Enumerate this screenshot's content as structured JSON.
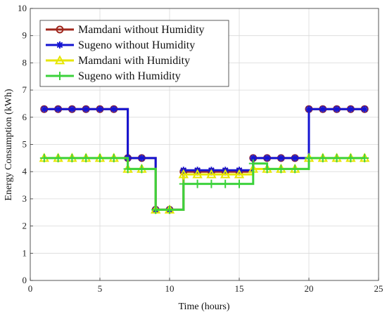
{
  "chart_data": {
    "type": "line",
    "xlabel": "Time (hours)",
    "ylabel": "Energy Consumption (kWh)",
    "xlim": [
      0,
      25
    ],
    "ylim": [
      0,
      10
    ],
    "xticks": [
      0,
      5,
      10,
      15,
      20,
      25
    ],
    "yticks": [
      0,
      1,
      2,
      3,
      4,
      5,
      6,
      7,
      8,
      9,
      10
    ],
    "grid": true,
    "legend_position": "top-left",
    "x": [
      1,
      2,
      3,
      4,
      5,
      6,
      7,
      8,
      9,
      10,
      11,
      12,
      13,
      14,
      15,
      16,
      17,
      18,
      19,
      20,
      21,
      22,
      23,
      24
    ],
    "series": [
      {
        "name": "Mamdani without Humidity",
        "color": "#a0281e",
        "marker": "circle",
        "values": [
          6.3,
          6.3,
          6.3,
          6.3,
          6.3,
          6.3,
          4.5,
          4.5,
          2.6,
          2.6,
          4.0,
          4.0,
          4.0,
          4.0,
          4.0,
          4.5,
          4.5,
          4.5,
          4.5,
          6.3,
          6.3,
          6.3,
          6.3,
          6.3
        ]
      },
      {
        "name": "Sugeno without Humidity",
        "color": "#1414d2",
        "marker": "star",
        "values": [
          6.3,
          6.3,
          6.3,
          6.3,
          6.3,
          6.3,
          4.5,
          4.5,
          2.6,
          2.6,
          4.05,
          4.05,
          4.05,
          4.05,
          4.05,
          4.5,
          4.5,
          4.5,
          4.5,
          6.3,
          6.3,
          6.3,
          6.3,
          6.3
        ]
      },
      {
        "name": "Mamdani with Humidity",
        "color": "#e6e600",
        "marker": "triangle",
        "values": [
          4.5,
          4.5,
          4.5,
          4.5,
          4.5,
          4.5,
          4.1,
          4.1,
          2.6,
          2.6,
          3.9,
          3.9,
          3.9,
          3.9,
          3.9,
          4.1,
          4.1,
          4.1,
          4.1,
          4.5,
          4.5,
          4.5,
          4.5,
          4.5
        ]
      },
      {
        "name": "Sugeno with Humidity",
        "color": "#3cd23c",
        "marker": "plus",
        "values": [
          4.5,
          4.5,
          4.5,
          4.5,
          4.5,
          4.5,
          4.1,
          4.1,
          2.6,
          2.6,
          3.55,
          3.55,
          3.55,
          3.55,
          3.55,
          4.3,
          4.1,
          4.1,
          4.1,
          4.5,
          4.5,
          4.5,
          4.5,
          4.5
        ]
      }
    ]
  }
}
